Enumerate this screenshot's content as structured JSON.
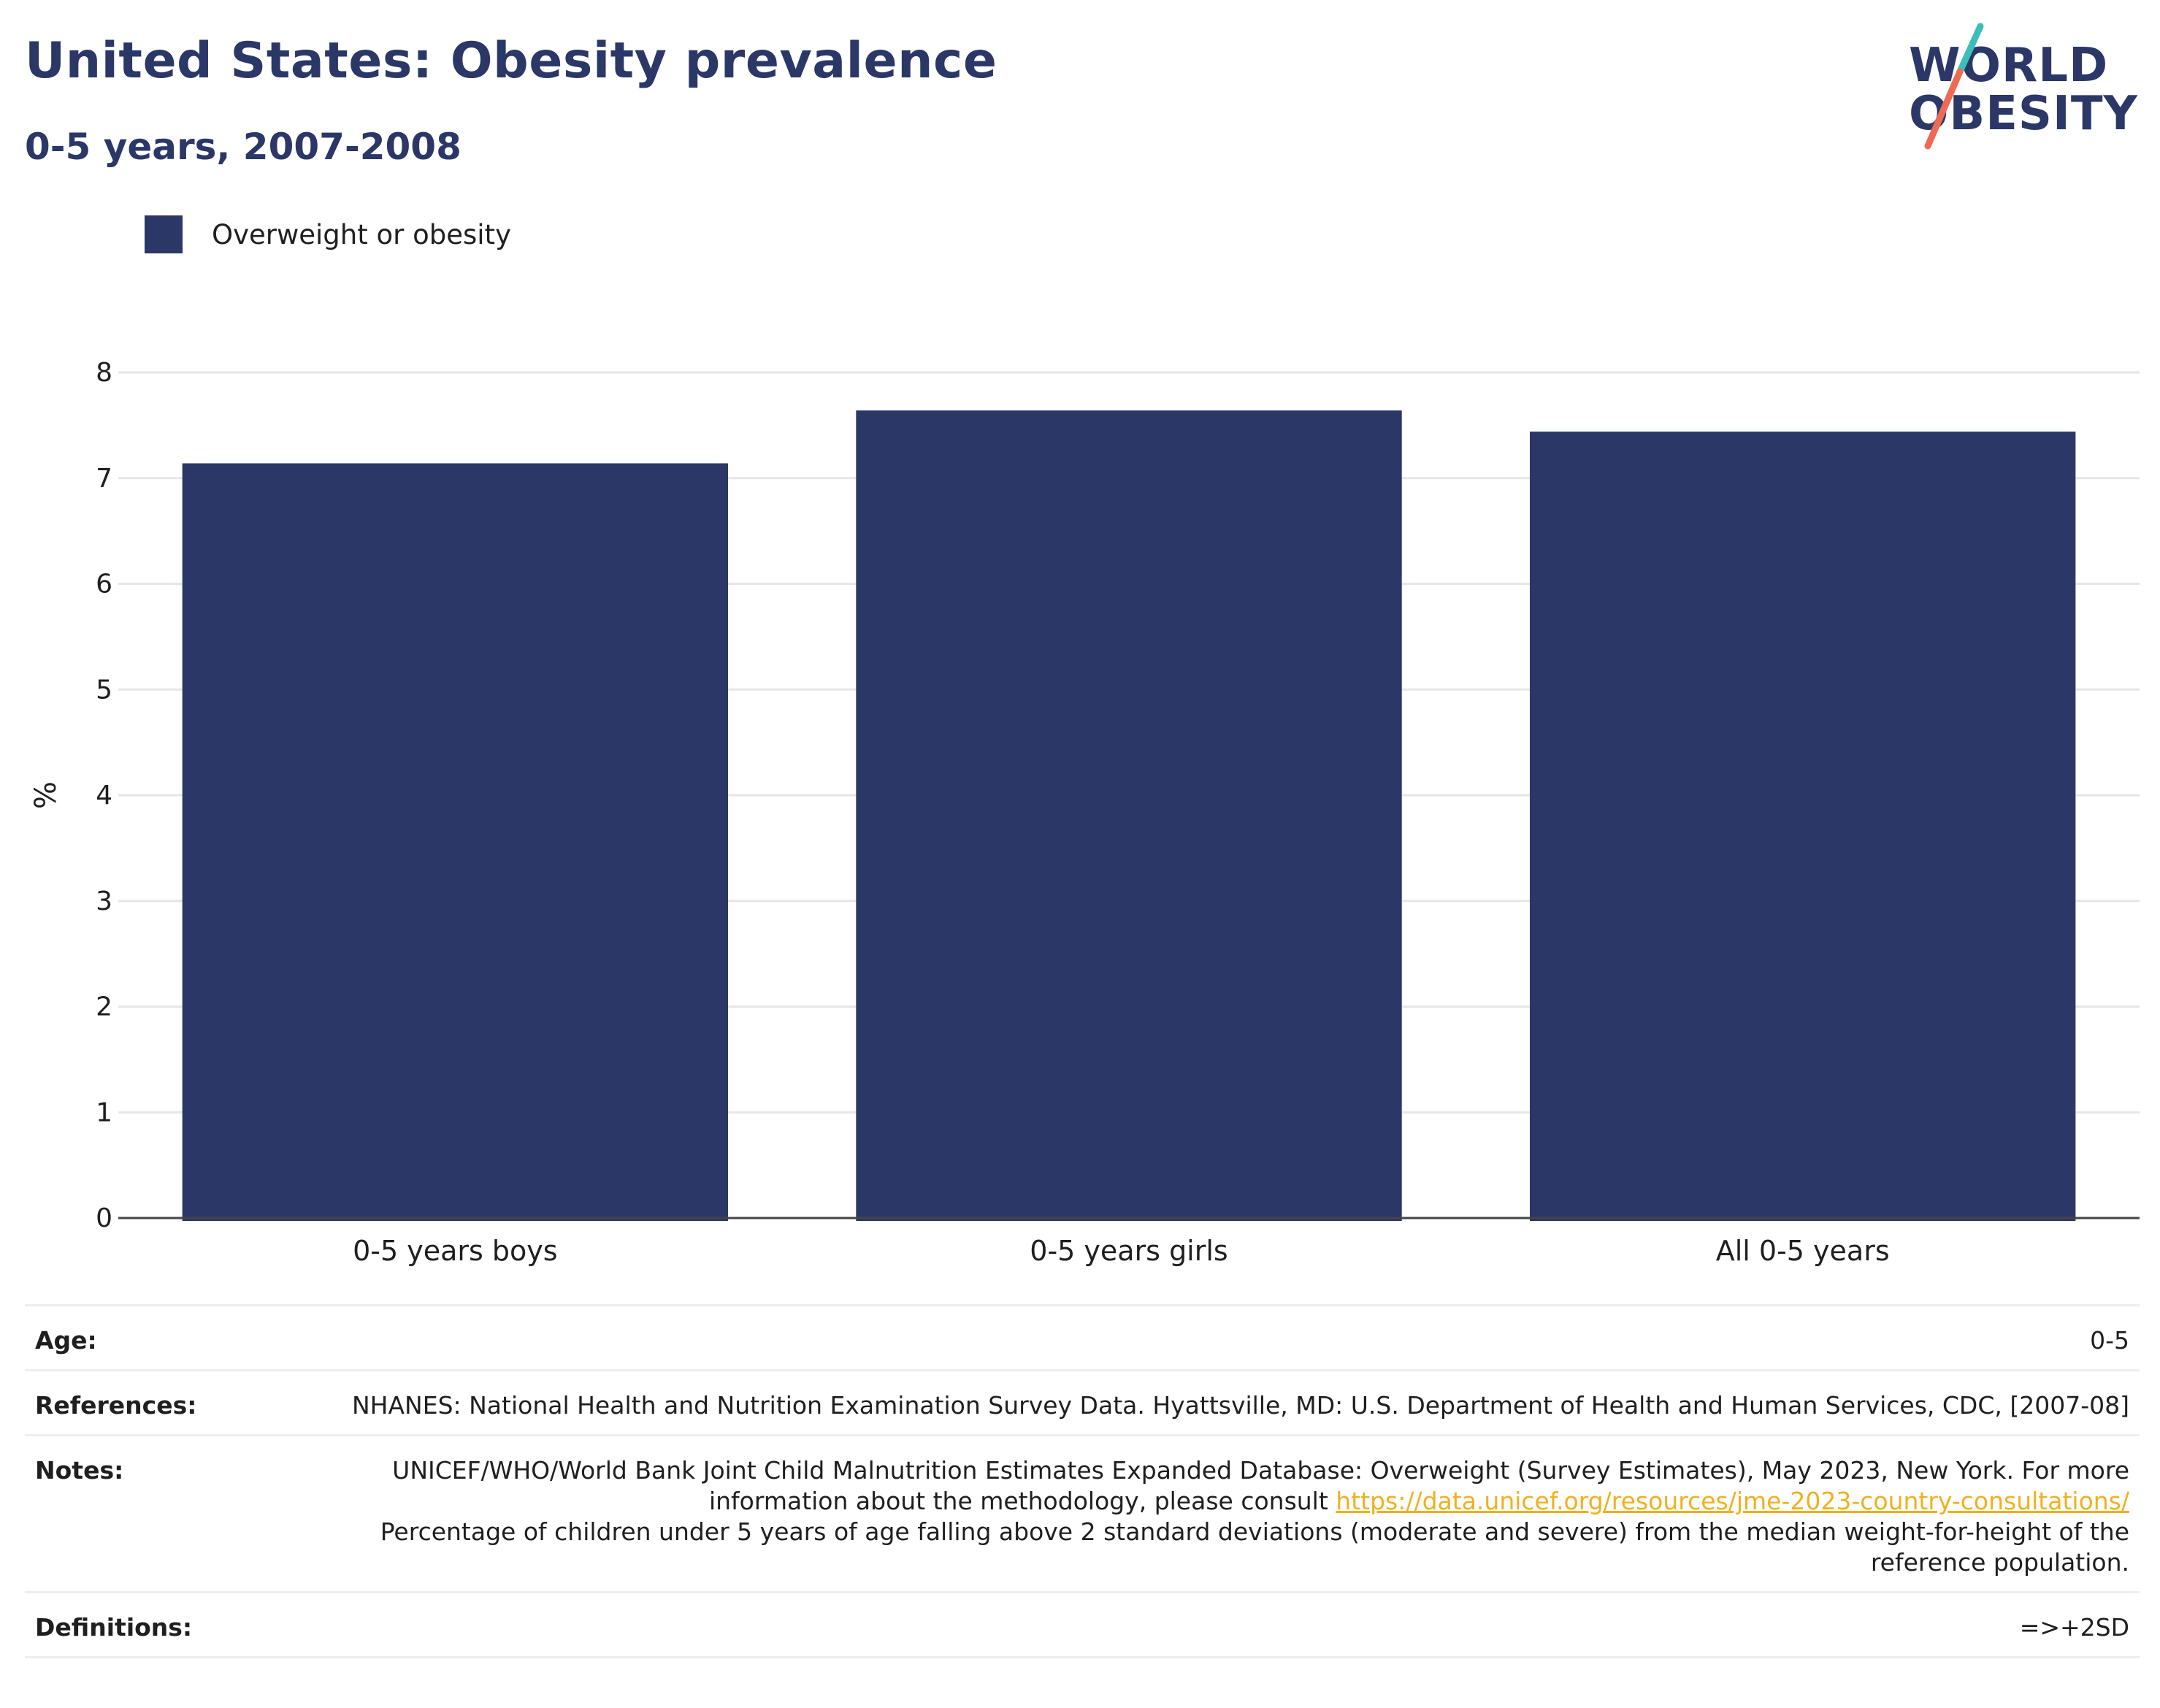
{
  "header": {
    "title": "United States: Obesity prevalence",
    "subtitle": "0-5 years, 2007-2008"
  },
  "logo": {
    "line1": "WORLD",
    "line2": "OBESITY"
  },
  "colors": {
    "primary": "#2b3766",
    "logo_slash_teal": "#3dbfb8",
    "logo_slash_coral": "#ef6a55",
    "link": "#f2b01e",
    "grid": "#e6e6e6"
  },
  "legend": {
    "label": "Overweight or obesity"
  },
  "chart_data": {
    "type": "bar",
    "categories": [
      "0-5 years boys",
      "0-5 years girls",
      "All 0-5 years"
    ],
    "series": [
      {
        "name": "Overweight or obesity",
        "values": [
          7.14,
          7.64,
          7.44
        ]
      }
    ],
    "ylabel": "%",
    "xlabel": "",
    "ylim": [
      0,
      8
    ],
    "yticks": [
      0,
      1,
      2,
      3,
      4,
      5,
      6,
      7,
      8
    ],
    "grid": true,
    "legend_position": "top-left"
  },
  "info": {
    "age_label": "Age:",
    "age_value": "0-5",
    "references_label": "References:",
    "references_value": "NHANES: National Health and Nutrition Examination Survey Data. Hyattsville, MD: U.S. Department of Health and Human Services, CDC, [2007-08]",
    "notes_label": "Notes:",
    "notes_text_1": "UNICEF/WHO/World Bank Joint Child Malnutrition Estimates Expanded Database: Overweight (Survey Estimates), May 2023, New York. For more information about the methodology, please consult",
    "notes_link": "https://data.unicef.org/resources/jme-2023-country-consultations/",
    "notes_text_2": "Percentage of children under 5 years of age falling above 2 standard deviations (moderate and severe) from the median weight-for-height of the reference population.",
    "definitions_label": "Definitions:",
    "definitions_value": "=>+2SD"
  }
}
